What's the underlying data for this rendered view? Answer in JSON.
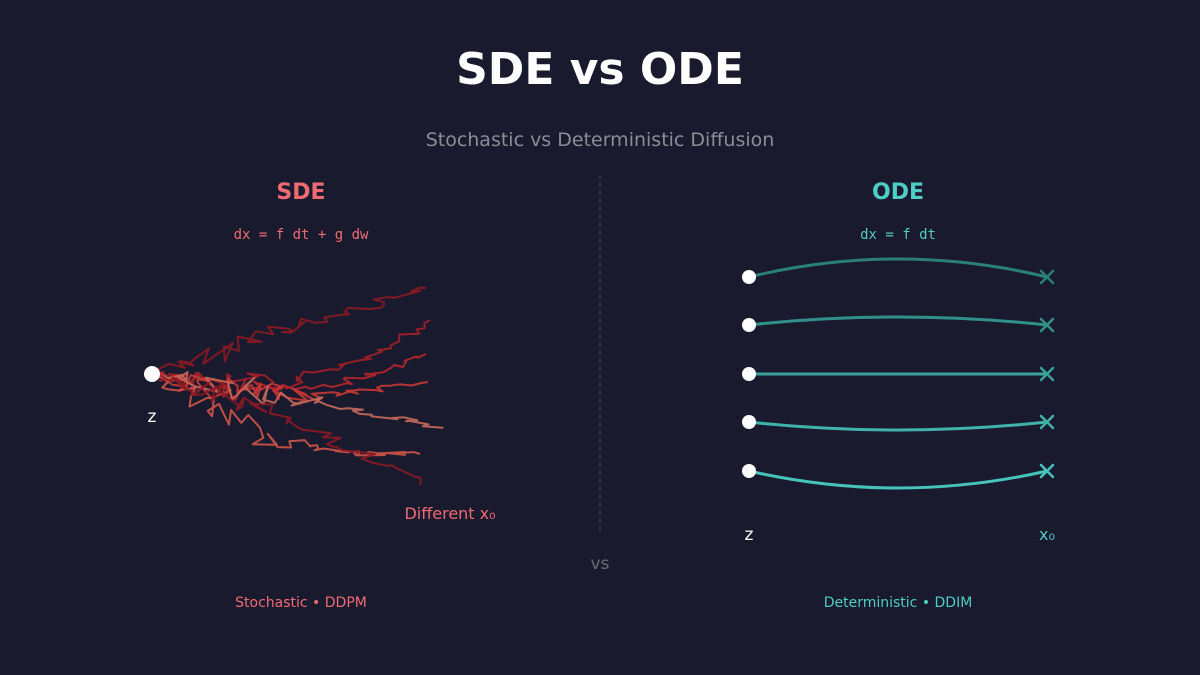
{
  "title": "SDE vs ODE",
  "subtitle": "Stochastic vs Deterministic Diffusion",
  "sde": {
    "heading": "SDE",
    "equation": "dx = f dt + g dw",
    "start_label": "z",
    "end_label": "Different x₀",
    "footer": "Stochastic • DDPM",
    "color": "#ef6b73",
    "path_colors": [
      "#8b1a22",
      "#a31f28",
      "#b8262e",
      "#c93a36",
      "#d0554a",
      "#c86a5c"
    ]
  },
  "ode": {
    "heading": "ODE",
    "equation": "dx = f dt",
    "start_label": "z",
    "end_label": "x₀",
    "footer": "Deterministic • DDIM",
    "color": "#4ecdc4",
    "path_colors": [
      "#2a8077",
      "#319189",
      "#38a39a",
      "#3fb3aa",
      "#46c3ba"
    ]
  },
  "divider_label": "vs"
}
